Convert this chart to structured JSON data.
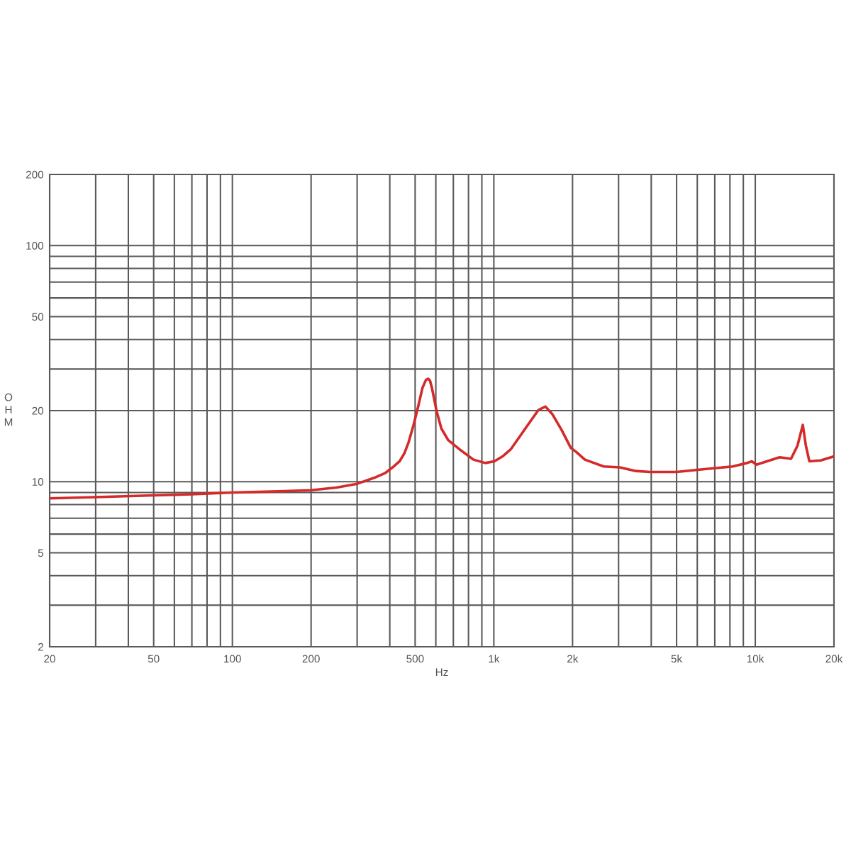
{
  "chart_data": {
    "type": "line",
    "xlabel": "Hz",
    "ylabel": "OHM",
    "color": "#d42a2a",
    "x": [
      20,
      30,
      50,
      70,
      100,
      150,
      200,
      250,
      300,
      350,
      385,
      410,
      436,
      455,
      472,
      492,
      513,
      533,
      550,
      561,
      570,
      580,
      604,
      630,
      669,
      740,
      836,
      927,
      1005,
      1080,
      1160,
      1250,
      1340,
      1480,
      1575,
      1675,
      1820,
      1970,
      2060,
      2230,
      2630,
      3030,
      3490,
      3950,
      5000,
      6400,
      8200,
      9300,
      9700,
      10100,
      12400,
      13700,
      14500,
      15200,
      15600,
      16100,
      17800,
      20000
    ],
    "values": [
      8.5,
      8.6,
      8.75,
      8.85,
      9.0,
      9.1,
      9.2,
      9.45,
      9.8,
      10.4,
      10.9,
      11.5,
      12.2,
      13.2,
      14.7,
      17.2,
      20.7,
      24.9,
      27.0,
      27.3,
      26.8,
      24.9,
      19.9,
      16.8,
      15.0,
      13.7,
      12.4,
      12.0,
      12.2,
      12.8,
      13.7,
      15.4,
      17.2,
      20.1,
      20.8,
      19.3,
      16.5,
      13.9,
      13.4,
      12.4,
      11.6,
      11.5,
      11.1,
      11.0,
      11.0,
      11.3,
      11.6,
      12.0,
      12.2,
      11.8,
      12.7,
      12.5,
      14.2,
      17.4,
      14.3,
      12.2,
      12.3,
      12.8
    ],
    "xlim": [
      20,
      20000
    ],
    "ylim": [
      2,
      200
    ],
    "xticks": [
      20,
      {
        "value": 30,
        "label": null
      },
      {
        "value": 40,
        "label": null
      },
      50,
      {
        "value": 60,
        "label": null
      },
      {
        "value": 70,
        "label": null
      },
      {
        "value": 80,
        "label": null
      },
      {
        "value": 90,
        "label": null
      },
      100,
      200,
      {
        "value": 300,
        "label": null
      },
      {
        "value": 400,
        "label": null
      },
      500,
      {
        "value": 600,
        "label": null
      },
      {
        "value": 700,
        "label": null
      },
      {
        "value": 800,
        "label": null
      },
      {
        "value": 900,
        "label": null
      },
      {
        "value": 1000,
        "label": "1k"
      },
      {
        "value": 2000,
        "label": "2k"
      },
      {
        "value": 3000,
        "label": null
      },
      {
        "value": 4000,
        "label": null
      },
      {
        "value": 5000,
        "label": "5k"
      },
      {
        "value": 6000,
        "label": null
      },
      {
        "value": 7000,
        "label": null
      },
      {
        "value": 8000,
        "label": null
      },
      {
        "value": 9000,
        "label": null
      },
      {
        "value": 10000,
        "label": "10k"
      },
      {
        "value": 20000,
        "label": "20k"
      }
    ],
    "yticks": [
      2,
      {
        "value": 3,
        "label": null
      },
      {
        "value": 4,
        "label": null
      },
      5,
      {
        "value": 6,
        "label": null
      },
      {
        "value": 7,
        "label": null
      },
      {
        "value": 8,
        "label": null
      },
      {
        "value": 9,
        "label": null
      },
      10,
      20,
      {
        "value": 30,
        "label": null
      },
      {
        "value": 40,
        "label": null
      },
      50,
      {
        "value": 60,
        "label": null
      },
      {
        "value": 70,
        "label": null
      },
      {
        "value": 80,
        "label": null
      },
      {
        "value": 90,
        "label": null
      },
      100,
      200
    ],
    "log": "xy",
    "grid": true
  }
}
